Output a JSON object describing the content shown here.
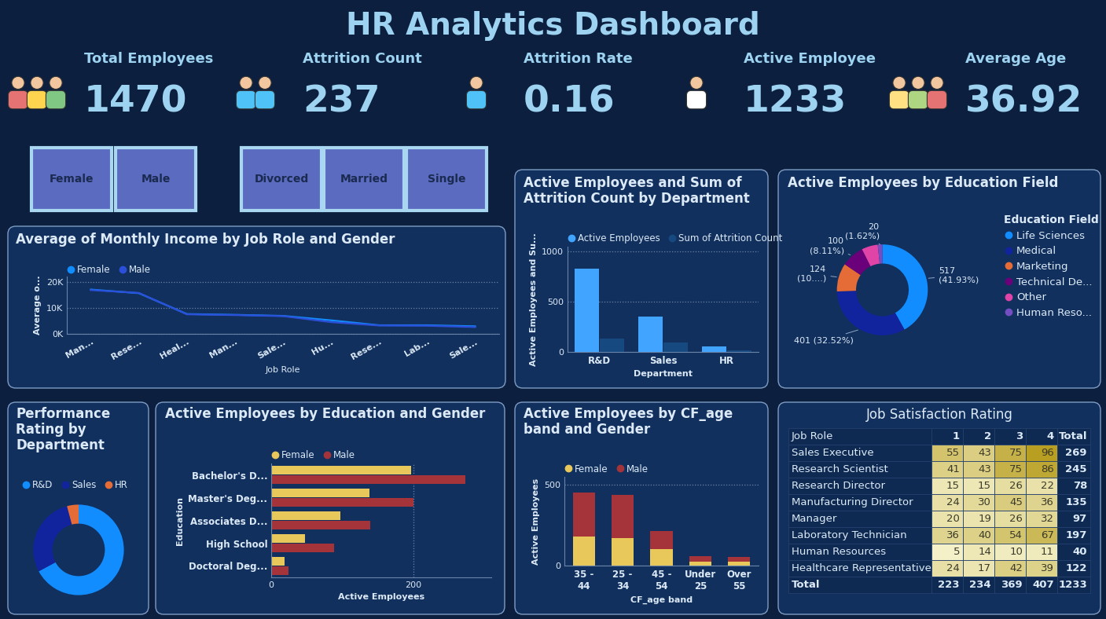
{
  "title": "HR Analytics Dashboard",
  "kpis": [
    {
      "label": "Total Employees",
      "value": 1470
    },
    {
      "label": "Attrition Count",
      "value": 237
    },
    {
      "label": "Attrition Rate",
      "value": 0.16
    },
    {
      "label": "Active Employee",
      "value": 1233
    },
    {
      "label": "Average Age",
      "value": 36.92
    }
  ],
  "slicers": [
    [
      "Female",
      "Male"
    ],
    [
      "Divorced",
      "Married",
      "Single"
    ]
  ],
  "chart_data": [
    {
      "type": "line",
      "title": "Average of Monthly Income by Job Role and Gender",
      "x_label": "Job Role",
      "y_label": "Average o...",
      "categories": [
        "Man...",
        "Rese...",
        "Heal...",
        "Man...",
        "Sale...",
        "Hu...",
        "Rese...",
        "Lab...",
        "Sale..."
      ],
      "series": [
        {
          "name": "Female",
          "color": "#118DFF",
          "values": [
            17000,
            15600,
            7600,
            7300,
            6900,
            5200,
            3300,
            3300,
            2900
          ]
        },
        {
          "name": "Male",
          "color": "#2B4FD8",
          "values": [
            16800,
            15700,
            7500,
            7200,
            6800,
            4500,
            3200,
            3100,
            2600
          ]
        }
      ],
      "ylim": [
        0,
        22000
      ],
      "yticks": [
        {
          "value": 0,
          "label": "0K"
        },
        {
          "value": 10000,
          "label": "10K"
        },
        {
          "value": 20000,
          "label": "20K"
        }
      ],
      "grid": true,
      "legend": "top left"
    },
    {
      "type": "bar",
      "title": "Active Employees and Sum of Attrition Count by Department",
      "x_label": "Department",
      "y_label": "Active Employees and Su...",
      "categories": [
        "R&D",
        "Sales",
        "HR"
      ],
      "series": [
        {
          "name": "Active Employees",
          "color": "#41A4FF",
          "values": [
            828,
            354,
            51
          ]
        },
        {
          "name": "Sum of Attrition Count",
          "color": "#15497F",
          "values": [
            133,
            92,
            12
          ]
        }
      ],
      "ylim": [
        0,
        1050
      ],
      "yticks": [
        0,
        500,
        1000
      ],
      "grid": true,
      "legend": "top left"
    },
    {
      "type": "donut",
      "title": "Active Employees by Education Field",
      "legend_title": "Education Field",
      "categories": [
        "Life Sciences",
        "Medical",
        "Marketing",
        "Technical De...",
        "Other",
        "Human Reso..."
      ],
      "values": [
        517,
        401,
        124,
        100,
        71,
        20
      ],
      "value_labels": [
        "517\n(41.93%)",
        "401 (32.52%)",
        "124\n(10....)",
        "100\n(8.11%)",
        null,
        "20\n(1.62%)"
      ],
      "colors": [
        "#118DFF",
        "#12239E",
        "#E66C37",
        "#6B007B",
        "#E044A7",
        "#744EC2"
      ],
      "data_labels": true,
      "legend": "right"
    },
    {
      "type": "donut",
      "title": "Performance Rating by Department",
      "categories": [
        "R&D",
        "Sales",
        "HR"
      ],
      "values": [
        828,
        354,
        51
      ],
      "colors": [
        "#118DFF",
        "#12239E",
        "#E66C37"
      ],
      "data_labels": false,
      "legend": "top left"
    },
    {
      "type": "bar",
      "orientation": "horizontal",
      "title": "Active Employees by Education and Gender",
      "x_label": "Active Employees",
      "y_label": "Education",
      "categories": [
        "Bachelor's D...",
        "Master's Deg...",
        "Associates D...",
        "High School",
        "Doctoral Deg..."
      ],
      "series": [
        {
          "name": "Female",
          "color": "#E8C85A",
          "values": [
            197,
            138,
            97,
            48,
            19
          ]
        },
        {
          "name": "Male",
          "color": "#A4343A",
          "values": [
            274,
            200,
            139,
            89,
            24
          ]
        }
      ],
      "xlim": [
        0,
        310
      ],
      "xticks": [
        0,
        200
      ],
      "grid": true,
      "legend": "top left"
    },
    {
      "type": "bar",
      "stacked": true,
      "title": "Active Employees by CF_age band and Gender",
      "x_label": "CF_age band",
      "y_label": "Active Employees",
      "categories": [
        "35 - 44",
        "25 - 34",
        "45 - 54",
        "Under 25",
        "Over 55"
      ],
      "series": [
        {
          "name": "Female",
          "color": "#E8C85A",
          "values": [
            179,
            168,
            100,
            23,
            22
          ]
        },
        {
          "name": "Male",
          "color": "#A4343A",
          "values": [
            274,
            269,
            116,
            35,
            31
          ]
        }
      ],
      "ylim": [
        0,
        550
      ],
      "yticks": [
        0,
        500
      ],
      "grid": true,
      "legend": "top left"
    }
  ],
  "table": {
    "title": "Job Satisfaction Rating",
    "columns": [
      "Job Role",
      "1",
      "2",
      "3",
      "4",
      "Total"
    ],
    "rows": [
      [
        "Sales Executive",
        55,
        43,
        75,
        96,
        269
      ],
      [
        "Research Scientist",
        41,
        43,
        75,
        86,
        245
      ],
      [
        "Research Director",
        15,
        15,
        26,
        22,
        78
      ],
      [
        "Manufacturing Director",
        24,
        30,
        45,
        36,
        135
      ],
      [
        "Manager",
        20,
        19,
        26,
        32,
        97
      ],
      [
        "Laboratory Technician",
        36,
        40,
        54,
        67,
        197
      ],
      [
        "Human Resources",
        5,
        14,
        10,
        11,
        40
      ],
      [
        "Healthcare Representative",
        24,
        17,
        42,
        39,
        122
      ]
    ],
    "total_row": [
      "Total",
      223,
      234,
      369,
      407,
      1233
    ]
  }
}
